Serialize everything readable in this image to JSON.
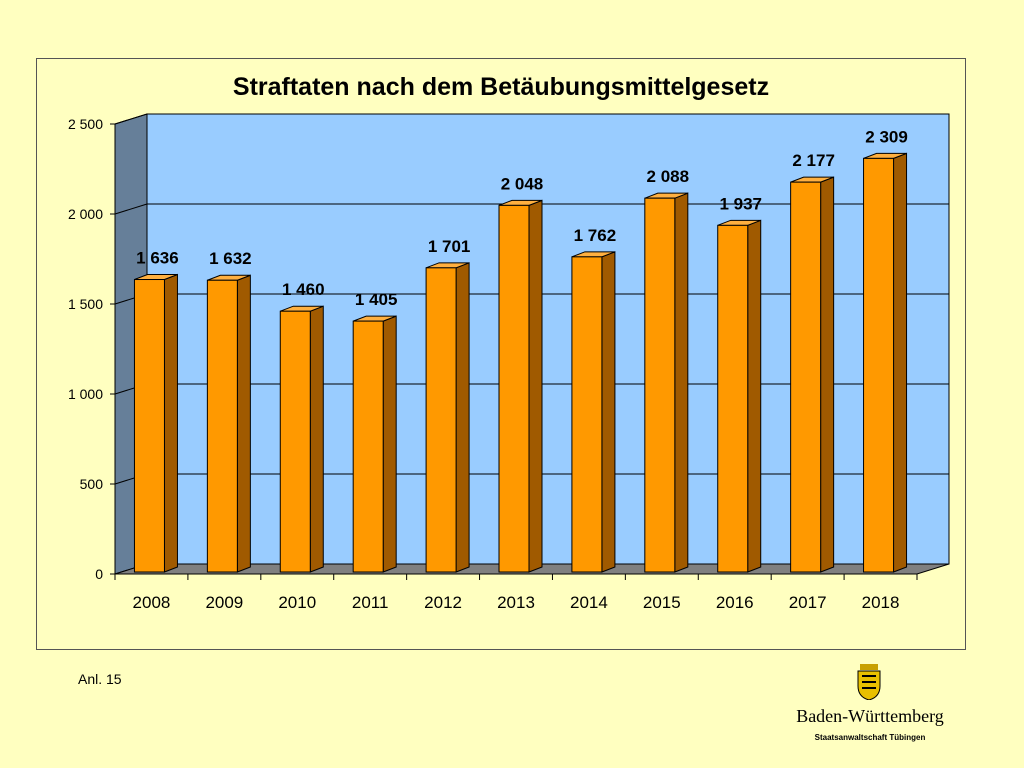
{
  "chart_data": {
    "type": "bar",
    "title": "Straftaten nach dem Betäubungsmittelgesetz",
    "categories": [
      "2008",
      "2009",
      "2010",
      "2011",
      "2012",
      "2013",
      "2014",
      "2015",
      "2016",
      "2017",
      "2018"
    ],
    "values": [
      1636,
      1632,
      1460,
      1405,
      1701,
      2048,
      1762,
      2088,
      1937,
      2177,
      2309
    ],
    "value_labels": [
      "1 636",
      "1 632",
      "1 460",
      "1 405",
      "1 701",
      "2 048",
      "1 762",
      "2 088",
      "1 937",
      "2 177",
      "2 309"
    ],
    "ylim": [
      0,
      2500
    ],
    "yticks": [
      0,
      500,
      1000,
      1500,
      2000,
      2500
    ],
    "ytick_labels": [
      "0",
      "500",
      "1 000",
      "1 500",
      "2 000",
      "2 500"
    ],
    "xlabel": "",
    "ylabel": "",
    "grid": true,
    "style": "3d-bar",
    "colors": {
      "bar_front": "#ff9900",
      "bar_side": "#a05a00",
      "bar_top": "#ffb040",
      "plot_back": "#99ccff",
      "plot_wall": "#667f99",
      "plot_floor": "#808080"
    }
  },
  "footnote": "Anl. 15",
  "logo": {
    "state_name": "Baden-Württemberg",
    "office_name": "Staatsanwaltschaft Tübingen",
    "icon": "coat-of-arms-icon"
  }
}
